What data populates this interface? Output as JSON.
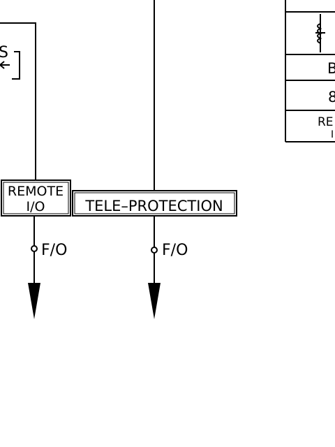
{
  "left_fragment": {
    "label_partial": "S"
  },
  "remote_io": {
    "line1": "REMOTE",
    "line2": "I/O"
  },
  "teleprotection": {
    "label": "TELE–PROTECTION"
  },
  "links": [
    {
      "label": "F/O"
    },
    {
      "label": "F/O"
    }
  ],
  "legend_fragment": {
    "rows": [
      "B",
      "8",
      "RE",
      "I"
    ]
  },
  "colors": {
    "line": "#000000",
    "background": "#ffffff"
  },
  "icons": [
    "arrowhead-down-icon",
    "junction-dot-icon",
    "relay-coil-icon",
    "switch-bracket-icon"
  ]
}
